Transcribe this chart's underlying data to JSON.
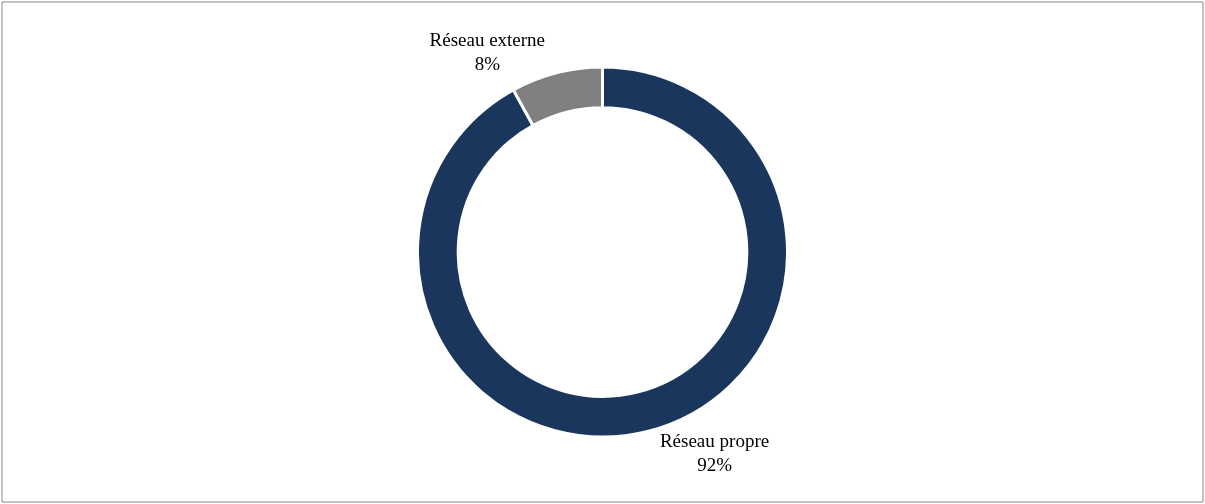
{
  "chart_data": {
    "type": "donut",
    "categories": [
      "Réseau propre",
      "Réseau externe"
    ],
    "values": [
      92,
      8
    ],
    "colors": [
      "#1b365d",
      "#808080"
    ],
    "value_labels": [
      "92%",
      "8%"
    ],
    "legend": false
  }
}
